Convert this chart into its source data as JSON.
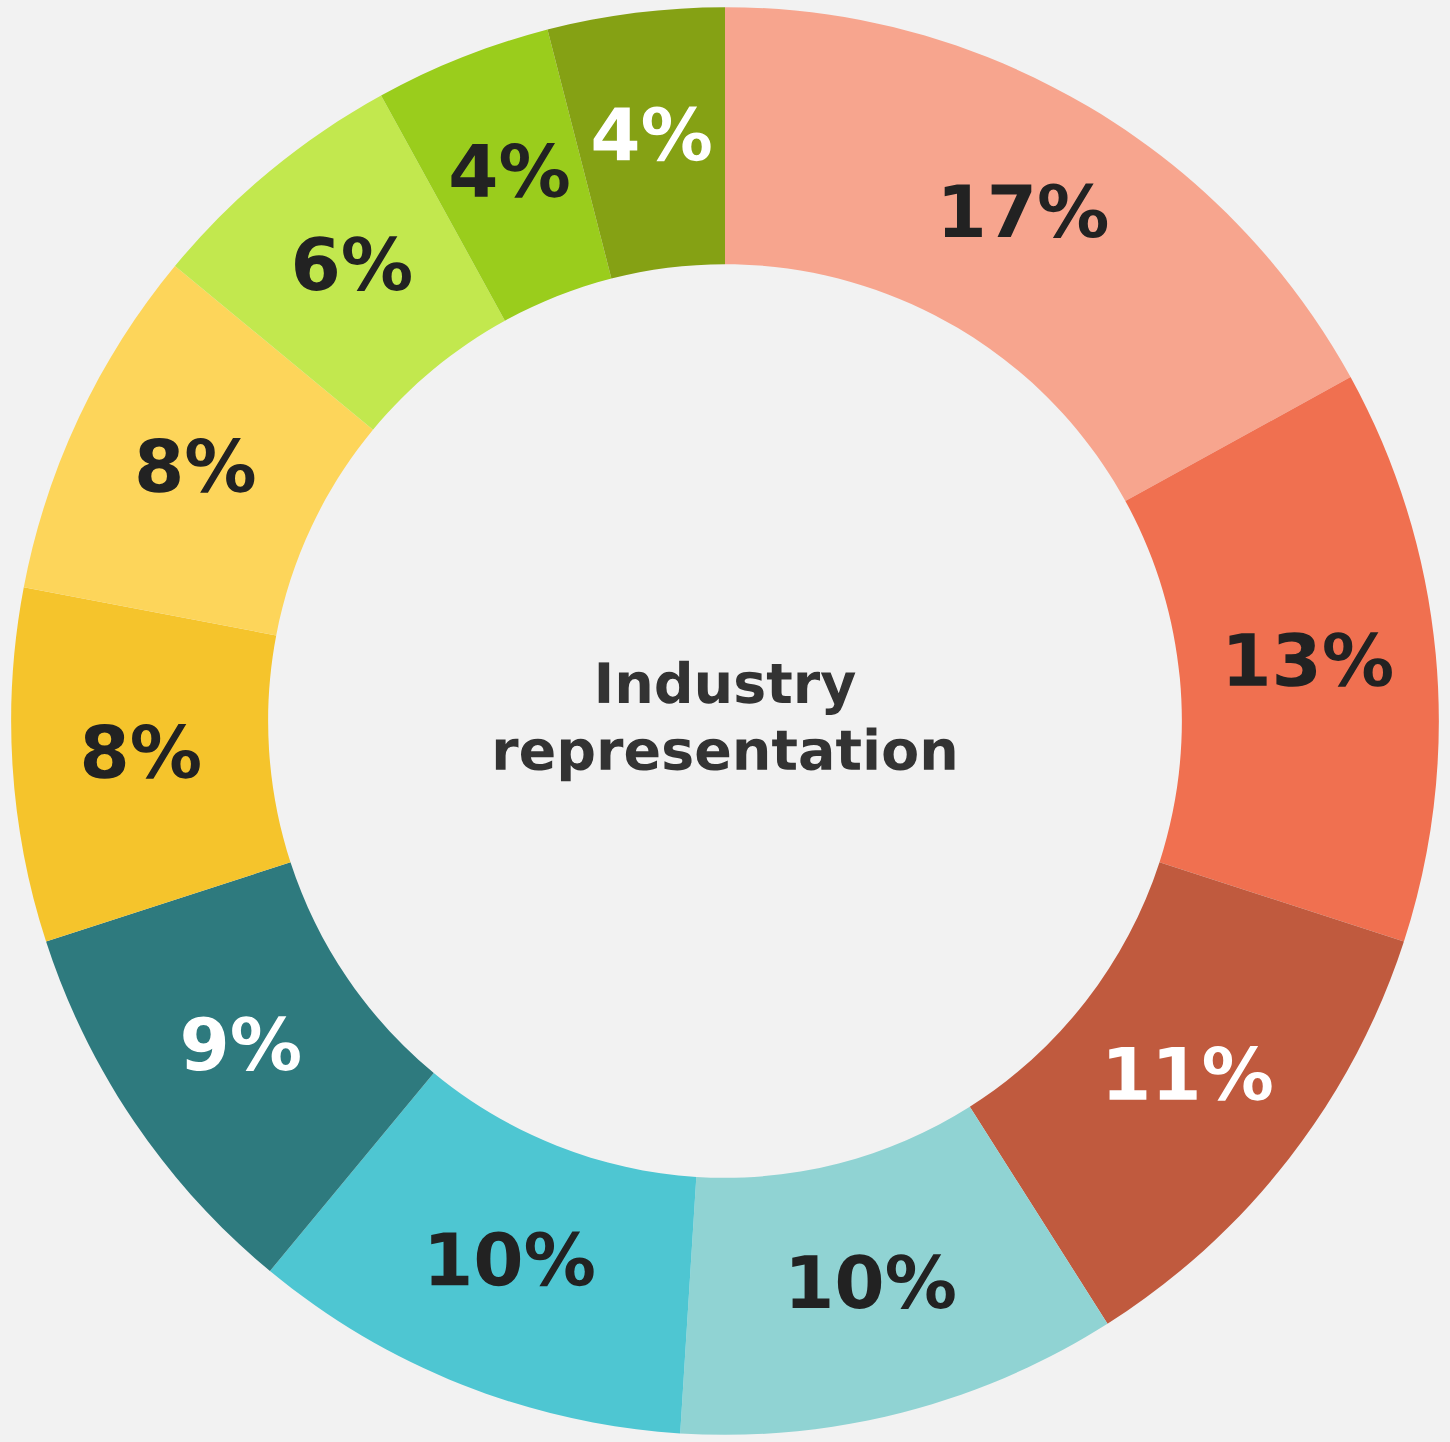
{
  "chart_data": {
    "type": "donut",
    "title": "Industry representation",
    "categories": [
      null,
      null,
      null,
      null,
      null,
      null,
      null,
      null,
      null,
      null,
      null
    ],
    "values": [
      17,
      13,
      11,
      10,
      10,
      9,
      8,
      8,
      6,
      4,
      4
    ],
    "colors": [
      "#f7a58e",
      "#f07050",
      "#c05a3e",
      "#90d3d3",
      "#4ec6d2",
      "#2e7a7e",
      "#f5c42c",
      "#fdd55a",
      "#c2e84e",
      "#9acd1c",
      "#85a114"
    ],
    "value_labels": [
      "17%",
      "13%",
      "11%",
      "10%",
      "10%",
      "9%",
      "8%",
      "8%",
      "6%",
      "4%",
      "4%"
    ],
    "legend": false
  }
}
